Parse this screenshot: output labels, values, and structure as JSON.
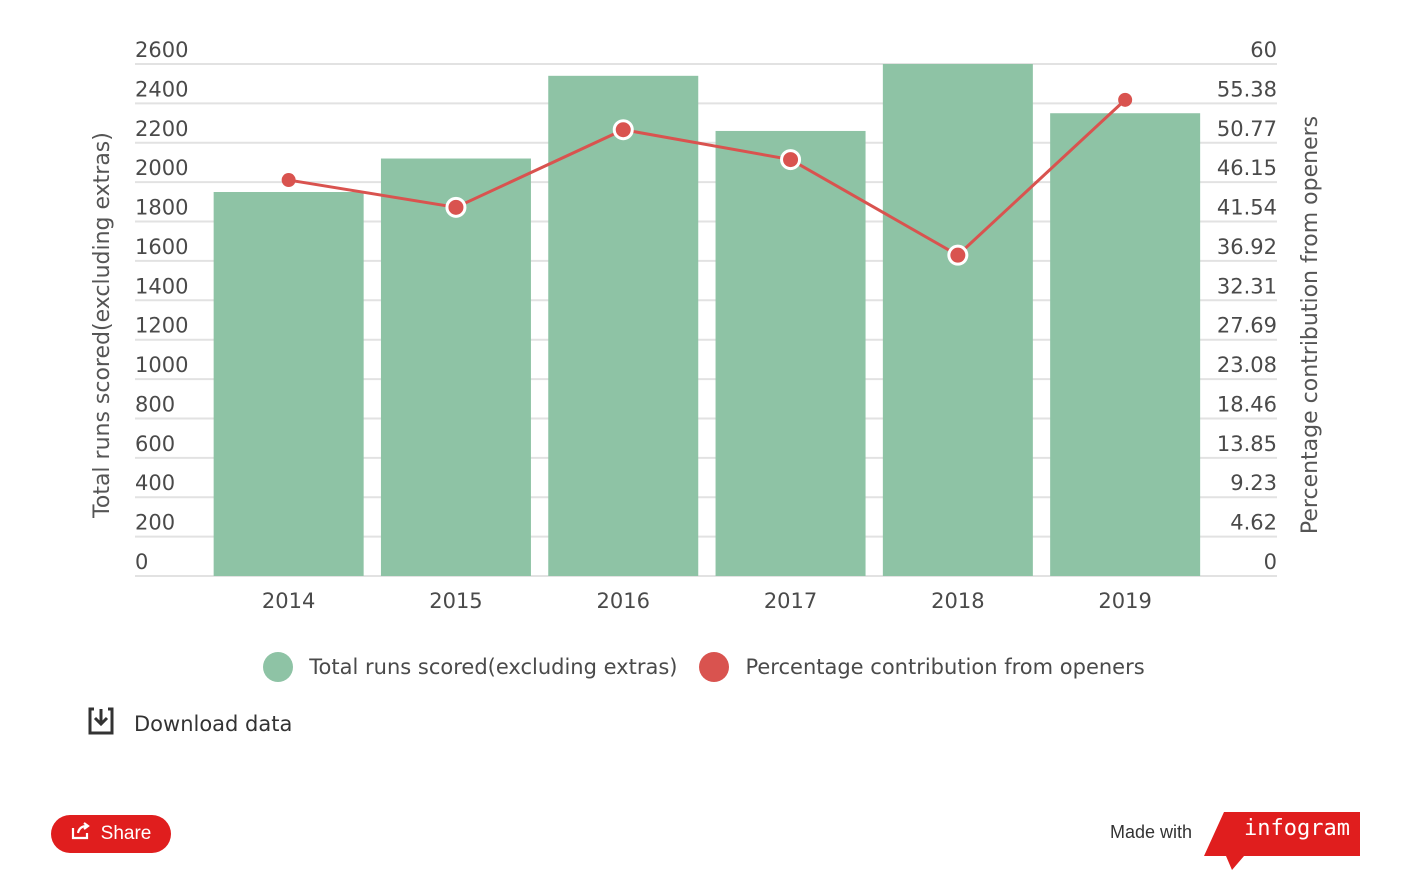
{
  "colors": {
    "bar": "#8ec3a5",
    "line": "#d9534f",
    "grid": "#e2e2e2",
    "brand": "#e01e1e"
  },
  "chart_data": {
    "type": "bar",
    "categories": [
      "2014",
      "2015",
      "2016",
      "2017",
      "2018",
      "2019"
    ],
    "series": [
      {
        "name": "Total runs scored(excluding extras)",
        "type": "bar",
        "axis": "left",
        "values": [
          1950,
          2120,
          2540,
          2260,
          2600,
          2350
        ]
      },
      {
        "name": "Percentage contribution from openers",
        "type": "line",
        "axis": "right",
        "values": [
          46.4,
          43.2,
          52.3,
          48.8,
          37.6,
          55.8
        ]
      }
    ],
    "ylabel": "Total runs scored(excluding extras)",
    "y2label": "Percentage contribution from openers",
    "ylim": [
      0,
      2600
    ],
    "y2lim": [
      0,
      60
    ],
    "yticks": [
      "2600",
      "2400",
      "2200",
      "2000",
      "1800",
      "1600",
      "1400",
      "1200",
      "1000",
      "800",
      "600",
      "400",
      "200",
      "0"
    ],
    "y2ticks": [
      "60",
      "55.38",
      "50.77",
      "46.15",
      "41.54",
      "36.92",
      "32.31",
      "27.69",
      "23.08",
      "18.46",
      "13.85",
      "9.23",
      "4.62",
      "0"
    ],
    "legend_position": "bottom"
  },
  "legend": {
    "items": [
      {
        "label": "Total runs scored(excluding extras)",
        "color": "#8ec3a5"
      },
      {
        "label": "Percentage contribution from openers",
        "color": "#d9534f"
      }
    ]
  },
  "download": {
    "label": "Download data",
    "icon": "download-icon"
  },
  "footer": {
    "share_label": "Share",
    "share_icon": "share-icon",
    "made_with": "Made with",
    "brand": "infogram"
  }
}
